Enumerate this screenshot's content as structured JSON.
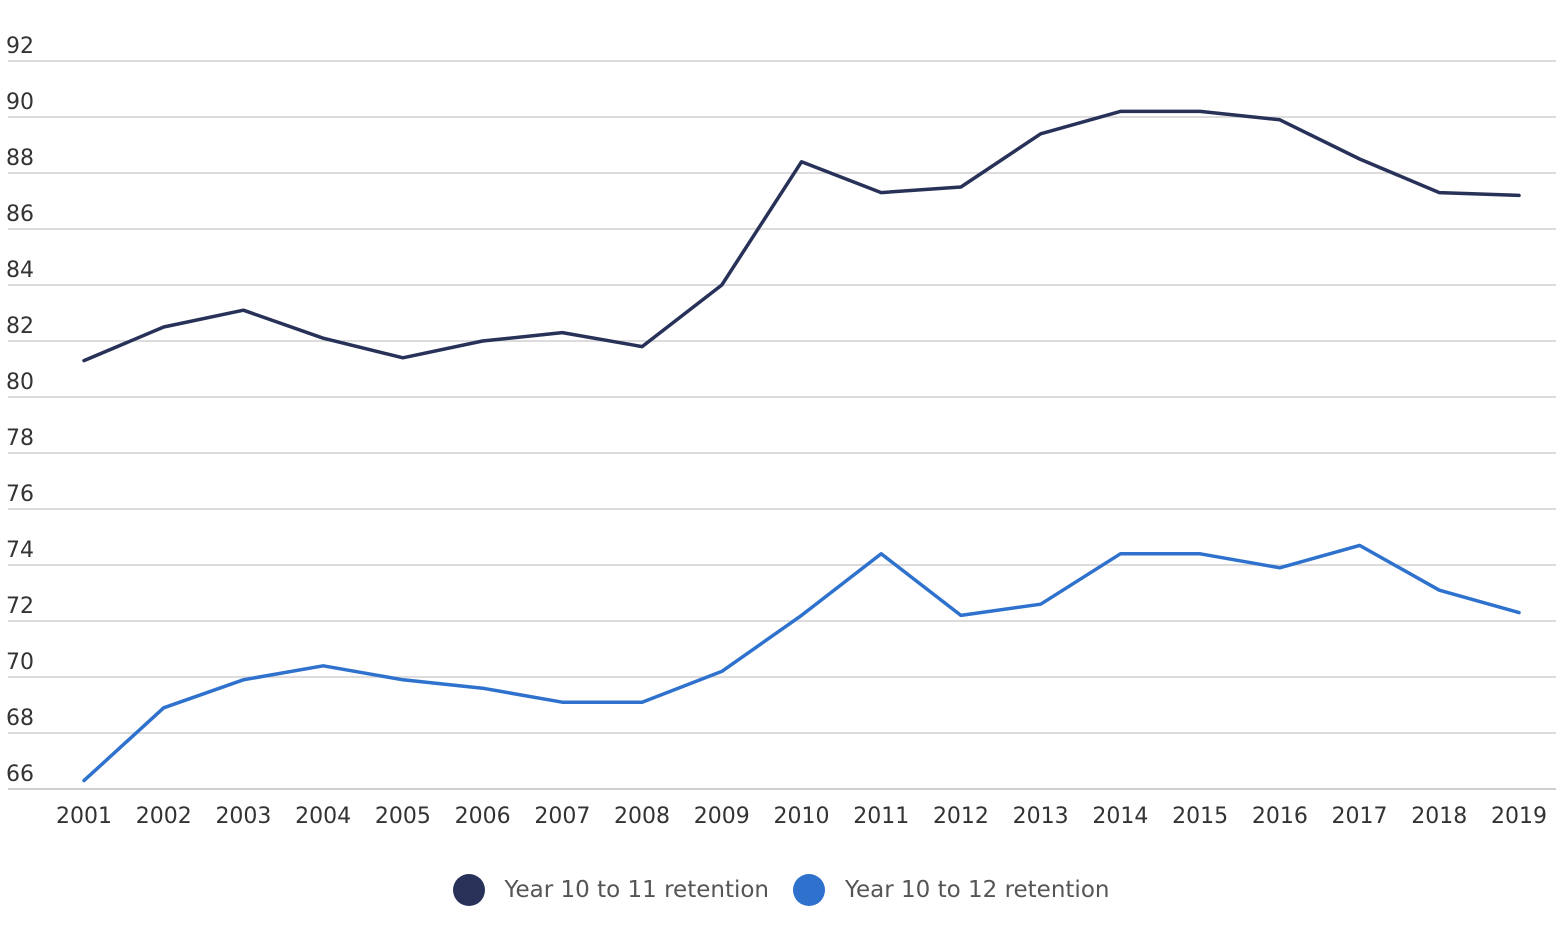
{
  "chart_data": {
    "type": "line",
    "title": "",
    "xlabel": "",
    "ylabel": "",
    "ylim": [
      66,
      92
    ],
    "y_ticks": [
      66,
      68,
      70,
      72,
      74,
      76,
      78,
      80,
      82,
      84,
      86,
      88,
      90,
      92
    ],
    "grid": true,
    "legend_position": "bottom-center",
    "categories": [
      "2001",
      "2002",
      "2003",
      "2004",
      "2005",
      "2006",
      "2007",
      "2008",
      "2009",
      "2010",
      "2011",
      "2012",
      "2013",
      "2014",
      "2015",
      "2016",
      "2017",
      "2018",
      "2019"
    ],
    "series": [
      {
        "name": "Year 10 to 11 retention",
        "color": "#283259",
        "values": [
          81.3,
          82.5,
          83.1,
          82.1,
          81.4,
          82.0,
          82.3,
          81.8,
          84.0,
          88.4,
          87.3,
          87.5,
          89.4,
          90.2,
          90.2,
          89.9,
          88.5,
          87.3,
          87.2
        ]
      },
      {
        "name": "Year 10 to 12 retention",
        "color": "#2f72cd",
        "values": [
          66.3,
          68.9,
          69.9,
          70.4,
          69.9,
          69.6,
          69.1,
          69.1,
          70.2,
          72.2,
          74.4,
          72.2,
          72.6,
          74.4,
          74.4,
          73.9,
          74.7,
          73.1,
          72.3
        ]
      }
    ]
  }
}
